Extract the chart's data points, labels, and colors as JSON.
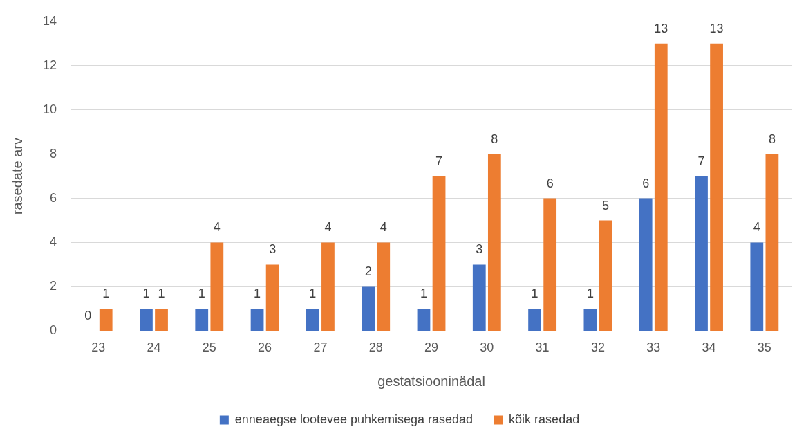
{
  "chart_data": {
    "type": "bar",
    "xlabel": "gestatsiooninädal",
    "ylabel": "rasedate arv",
    "categories": [
      "23",
      "24",
      "25",
      "26",
      "27",
      "28",
      "29",
      "30",
      "31",
      "32",
      "33",
      "34",
      "35"
    ],
    "series": [
      {
        "name": "enneaegse lootevee puhkemisega rasedad",
        "color": "#4472c4",
        "values": [
          0,
          1,
          1,
          1,
          1,
          2,
          1,
          3,
          1,
          1,
          6,
          7,
          4
        ]
      },
      {
        "name": "kõik rasedad",
        "color": "#ed7d31",
        "values": [
          1,
          1,
          4,
          3,
          4,
          4,
          7,
          8,
          6,
          5,
          13,
          13,
          8
        ]
      }
    ],
    "ylim": [
      0,
      14
    ],
    "yticks": [
      0,
      2,
      4,
      6,
      8,
      10,
      12,
      14
    ],
    "grid": "y",
    "legend": "bottom",
    "data_labels": true
  }
}
